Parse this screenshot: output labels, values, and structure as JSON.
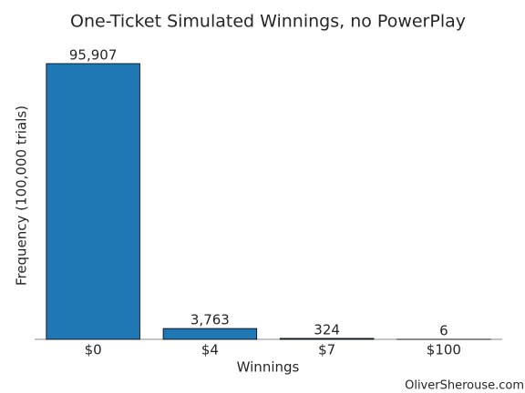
{
  "chart_data": {
    "type": "bar",
    "title": "One-Ticket Simulated Winnings, no PowerPlay",
    "x_label": "Winnings",
    "y_label": "Frequency (100,000 trials)",
    "annotation": "OliverSherouse.com",
    "categories": [
      "$0",
      "$4",
      "$7",
      "$100"
    ],
    "values": [
      95907,
      3763,
      324,
      6
    ],
    "value_labels": [
      "95,907",
      "3,763",
      "324",
      "6"
    ],
    "color": "#1f77b4",
    "ylim": [
      0,
      100000
    ]
  }
}
